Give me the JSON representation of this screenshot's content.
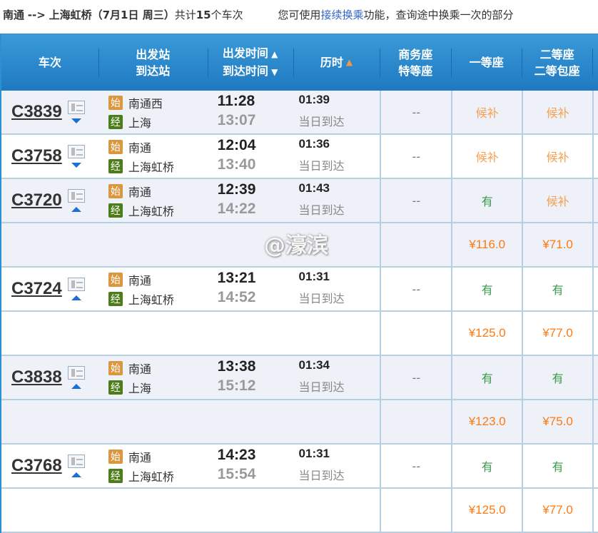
{
  "summary": {
    "from": "南通",
    "arrow": "-->",
    "to": "上海虹桥",
    "date": "（7月1日  周三）",
    "count_prefix": "共计",
    "count": "15",
    "count_suffix": "个车次",
    "tip_prefix": "您可使用",
    "tip_link": "接续换乘",
    "tip_suffix": "功能，查询途中换乘一次的部分"
  },
  "header": {
    "train": "车次",
    "from": "出发站",
    "to": "到达站",
    "dep": "出发时间",
    "arr": "到达时间",
    "duration": "历时",
    "biz": "商务座",
    "special": "特等座",
    "first": "一等座",
    "second": "二等座",
    "second_box": "二等包座"
  },
  "badges": {
    "start": "始",
    "pass": "经"
  },
  "trains": [
    {
      "no": "C3839",
      "dir": "down",
      "from": "南通西",
      "to": "上海",
      "dep": "11:28",
      "arr": "13:07",
      "dur": "01:39",
      "arrday": "当日到达",
      "biz": "--",
      "first": "候补",
      "second": "候补",
      "price": null
    },
    {
      "no": "C3758",
      "dir": "down",
      "from": "南通",
      "to": "上海虹桥",
      "dep": "12:04",
      "arr": "13:40",
      "dur": "01:36",
      "arrday": "当日到达",
      "biz": "--",
      "first": "候补",
      "second": "候补",
      "price": null
    },
    {
      "no": "C3720",
      "dir": "up",
      "from": "南通",
      "to": "上海虹桥",
      "dep": "12:39",
      "arr": "14:22",
      "dur": "01:43",
      "arrday": "当日到达",
      "biz": "--",
      "first": "有",
      "second": "候补",
      "price": {
        "first": "¥116.0",
        "second": "¥71.0"
      }
    },
    {
      "no": "C3724",
      "dir": "up",
      "from": "南通",
      "to": "上海虹桥",
      "dep": "13:21",
      "arr": "14:52",
      "dur": "01:31",
      "arrday": "当日到达",
      "biz": "--",
      "first": "有",
      "second": "有",
      "price": {
        "first": "¥125.0",
        "second": "¥77.0"
      }
    },
    {
      "no": "C3838",
      "dir": "up",
      "from": "南通",
      "to": "上海",
      "dep": "13:38",
      "arr": "15:12",
      "dur": "01:34",
      "arrday": "当日到达",
      "biz": "--",
      "first": "有",
      "second": "有",
      "price": {
        "first": "¥123.0",
        "second": "¥75.0"
      }
    },
    {
      "no": "C3768",
      "dir": "up",
      "from": "南通",
      "to": "上海虹桥",
      "dep": "14:23",
      "arr": "15:54",
      "dur": "01:31",
      "arrday": "当日到达",
      "biz": "--",
      "first": "有",
      "second": "有",
      "price": {
        "first": "¥125.0",
        "second": "¥77.0"
      }
    }
  ],
  "watermark": "@濠滨",
  "colors": {
    "header": "#2a88cc",
    "price": "#ff7a10",
    "available": "#3a9a4a",
    "waitlist": "#f5a050"
  }
}
